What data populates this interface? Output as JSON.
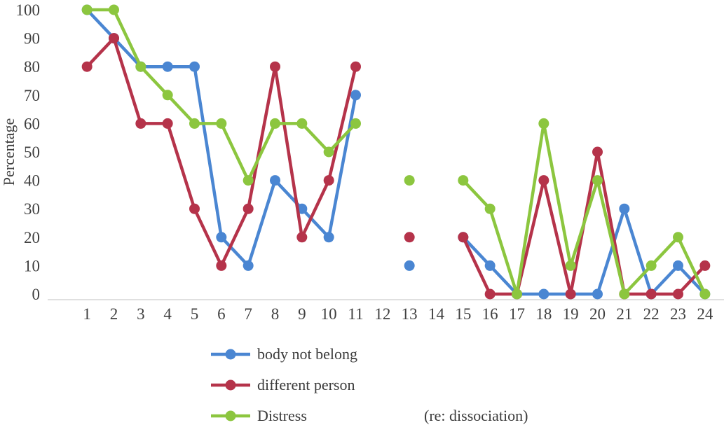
{
  "chart_data": {
    "type": "line",
    "title": "",
    "xlabel": "",
    "ylabel": "Percentage",
    "ylim": [
      0,
      100
    ],
    "yticks": [
      0,
      10,
      20,
      30,
      40,
      50,
      60,
      70,
      80,
      90,
      100
    ],
    "grid": false,
    "legend_position": "bottom",
    "annotation": "(re: dissociation)",
    "axis_color": "#d6d6d6",
    "text_color": "#3f3f3f",
    "categories": [
      "1",
      "2",
      "3",
      "4",
      "5",
      "6",
      "7",
      "8",
      "9",
      "10",
      "11",
      "12",
      "13",
      "14",
      "15",
      "16",
      "17",
      "18",
      "19",
      "20",
      "21",
      "22",
      "23",
      "24"
    ],
    "series": [
      {
        "name": "body not belong",
        "color": "#4A86D2",
        "values": [
          100,
          90,
          80,
          80,
          80,
          20,
          10,
          40,
          30,
          20,
          70,
          null,
          10,
          null,
          20,
          10,
          0,
          0,
          0,
          0,
          30,
          0,
          10,
          0
        ]
      },
      {
        "name": "different person",
        "color": "#B5334A",
        "values": [
          80,
          90,
          60,
          60,
          30,
          10,
          30,
          80,
          20,
          40,
          80,
          null,
          20,
          null,
          20,
          0,
          0,
          40,
          0,
          50,
          0,
          0,
          0,
          10
        ]
      },
      {
        "name": "Distress",
        "color": "#8CC63F",
        "values": [
          100,
          100,
          80,
          70,
          60,
          60,
          40,
          60,
          60,
          50,
          60,
          null,
          40,
          null,
          40,
          30,
          0,
          60,
          10,
          40,
          0,
          10,
          20,
          0
        ]
      }
    ]
  }
}
